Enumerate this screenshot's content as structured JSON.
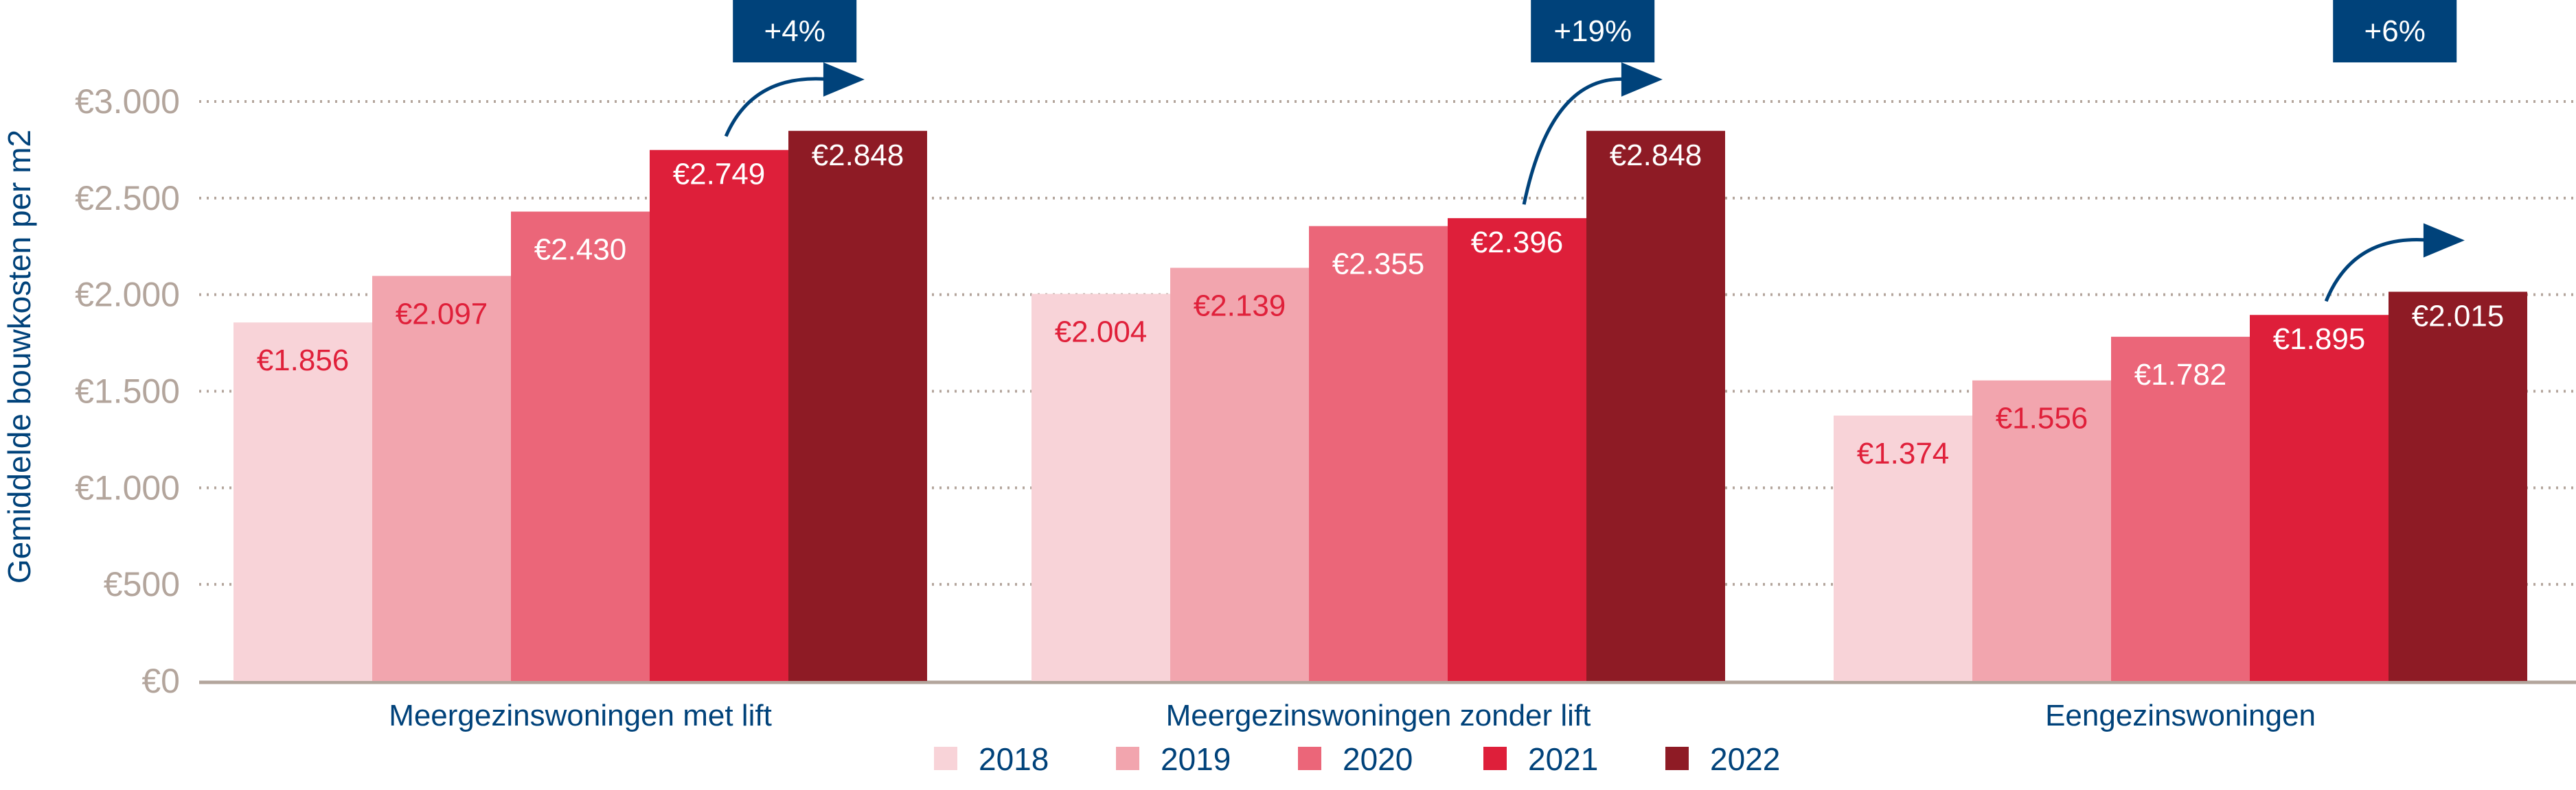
{
  "chart_data": {
    "type": "bar",
    "title": "",
    "xlabel": "",
    "ylabel": "Gemiddelde bouwkosten per m2",
    "ylim": [
      0,
      3000
    ],
    "yticks": [
      0,
      500,
      1000,
      1500,
      2000,
      2500,
      3000
    ],
    "ytick_labels": [
      "€0",
      "€500",
      "€1.000",
      "€1.500",
      "€2.000",
      "€2.500",
      "€3.000"
    ],
    "grid": "horizontal dotted",
    "legend_position": "bottom",
    "categories": [
      "Meergezinswoningen met lift",
      "Meergezinswoningen zonder lift",
      "Eengezinswoningen"
    ],
    "series": [
      {
        "name": "2018",
        "color": "#f8d3d8",
        "values": [
          1856,
          2004,
          1374
        ],
        "labels": [
          "€1.856",
          "€2.004",
          "€1.374"
        ]
      },
      {
        "name": "2019",
        "color": "#f2a5ae",
        "values": [
          2097,
          2139,
          1556
        ],
        "labels": [
          "€2.097",
          "€2.139",
          "€1.556"
        ]
      },
      {
        "name": "2020",
        "color": "#eb6679",
        "values": [
          2430,
          2355,
          1782
        ],
        "labels": [
          "€2.430",
          "€2.355",
          "€1.782"
        ]
      },
      {
        "name": "2021",
        "color": "#de1f3a",
        "values": [
          2749,
          2396,
          1895
        ],
        "labels": [
          "€2.749",
          "€2.396",
          "€1.895"
        ]
      },
      {
        "name": "2022",
        "color": "#8e1b25",
        "values": [
          2848,
          2848,
          2015
        ],
        "labels": [
          "€2.848",
          "€2.848",
          "€2.015"
        ]
      }
    ],
    "annotations": [
      "+4%",
      "+19%",
      "+6%"
    ],
    "colors": {
      "axis_text": "#b3a59c",
      "label_dark": "#e0203a",
      "navy": "#00427a",
      "grid": "#b3a59c"
    }
  }
}
